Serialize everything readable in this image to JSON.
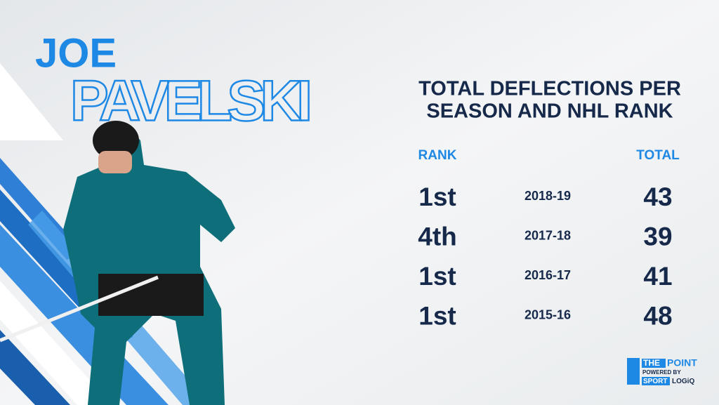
{
  "header": {
    "first_name": "JOE",
    "last_name": "PAVELSKI"
  },
  "table": {
    "title_lines": [
      "TOTAL DEFLECTIONS PER",
      "SEASON AND NHL RANK"
    ],
    "columns": [
      "RANK",
      "TOTAL"
    ],
    "rows": [
      [
        "1st",
        "2018-19",
        "43"
      ],
      [
        "4th",
        "2017-18",
        "39"
      ],
      [
        "1st",
        "2016-17",
        "41"
      ],
      [
        "1st",
        "2015-16",
        "48"
      ]
    ]
  },
  "logo": {
    "the": "THE",
    "point": "POINT",
    "powered_by": "POWERED BY",
    "sport": "SPORT",
    "logiq": "LOGiQ"
  }
}
